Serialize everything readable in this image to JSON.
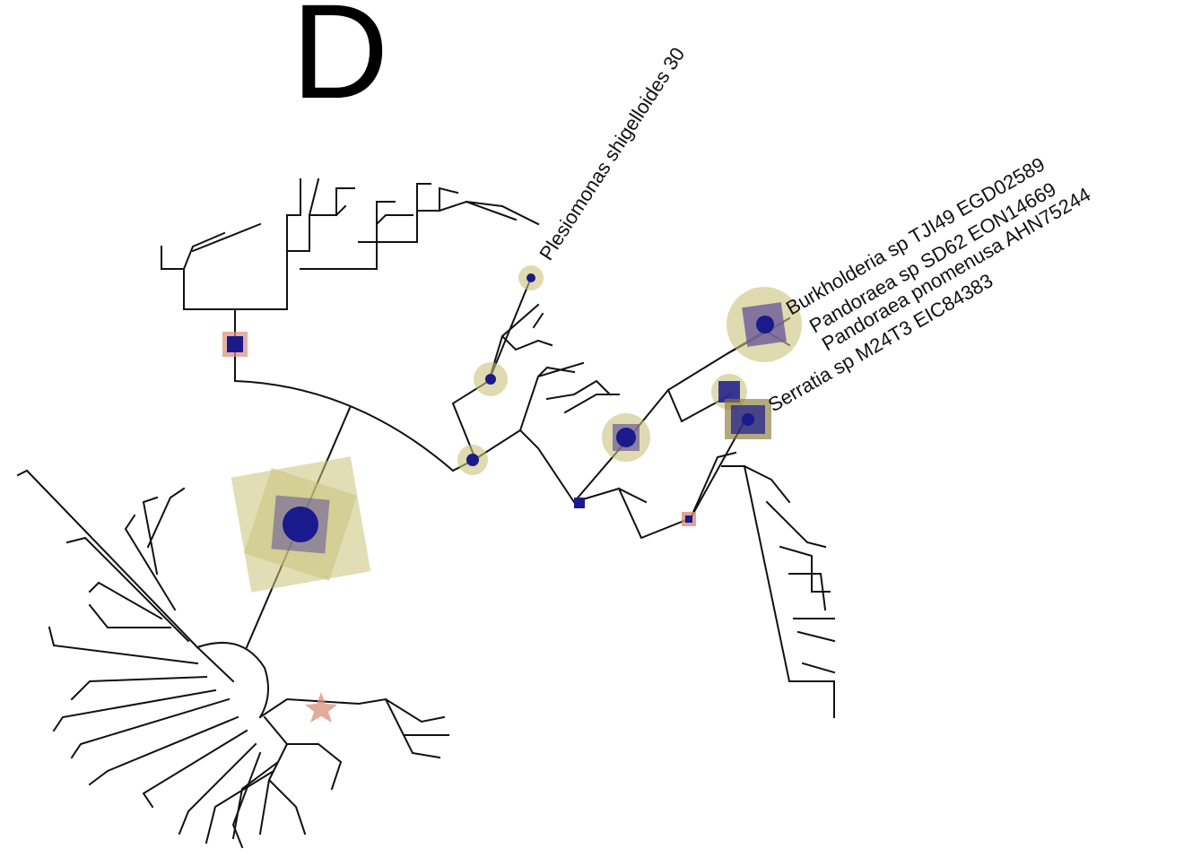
{
  "panel_label": "D",
  "tip_labels": [
    "Plesiomonas shigelloides 30",
    "Burkholderia sp TJI49 EGD02589",
    "Pandoraea sp SD62 EON14669",
    "Pandoraea pnomenusa AHN75244",
    "Serratia sp M24T3 EIC84383"
  ],
  "colors": {
    "branch": "#111111",
    "node_core": "#1a1a8c",
    "node_halo": "#c9c27a",
    "node_square": "#6a5a9a",
    "marker_star": "#d98f7a"
  }
}
